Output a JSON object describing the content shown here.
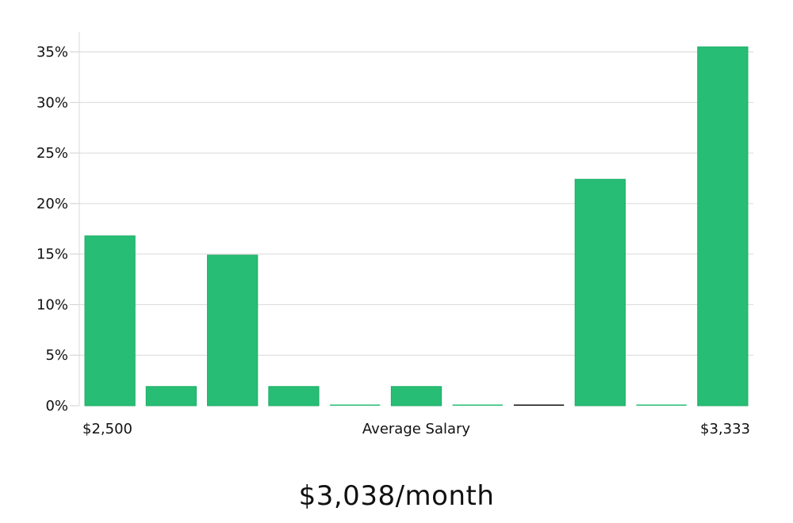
{
  "chart_data": {
    "type": "bar",
    "values": [
      16.8,
      1.9,
      14.9,
      1.9,
      0,
      1.9,
      0,
      0,
      22.4,
      0,
      35.5
    ],
    "bar_color": "#27bd74",
    "zero_bar_colors": [
      "#27bd74",
      "#27bd74",
      "#111111",
      "#27bd74"
    ],
    "ylim": [
      0,
      37
    ],
    "yticks": [
      {
        "value": 0,
        "label": "0%"
      },
      {
        "value": 5,
        "label": "5%"
      },
      {
        "value": 10,
        "label": "10%"
      },
      {
        "value": 15,
        "label": "15%"
      },
      {
        "value": 20,
        "label": "20%"
      },
      {
        "value": 25,
        "label": "25%"
      },
      {
        "value": 30,
        "label": "30%"
      },
      {
        "value": 35,
        "label": "35%"
      }
    ],
    "x_min_label": "$2,500",
    "x_max_label": "$3,333",
    "xlabel": "Average Salary",
    "grid": true
  },
  "salary_text": "$3,038/month"
}
